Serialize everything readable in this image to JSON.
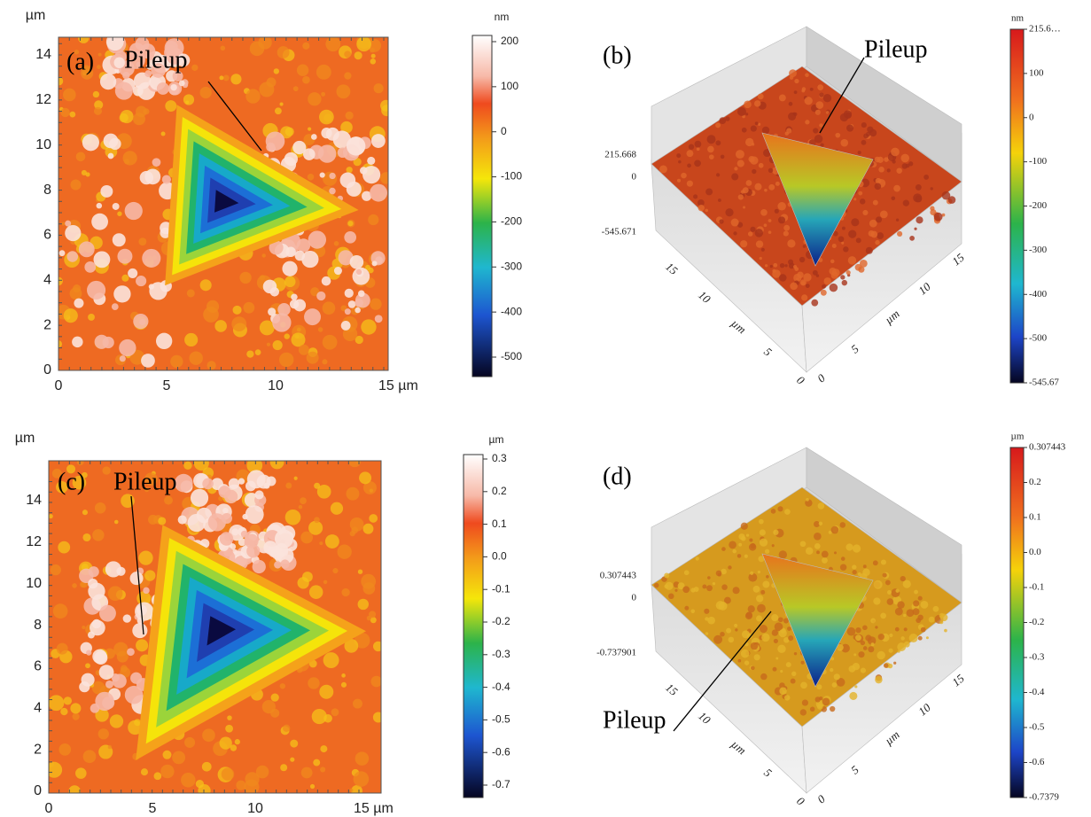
{
  "panels": [
    {
      "label": "(a)",
      "annotation": "Pileup",
      "axis_unit": "µm",
      "xticks": [
        "0",
        "5",
        "10",
        "15 µm"
      ],
      "yticks": [
        "0",
        "2",
        "4",
        "6",
        "8",
        "10",
        "12",
        "14"
      ],
      "colorbar_unit": "nm",
      "colorbar_ticks": [
        "200",
        "100",
        "0",
        "-100",
        "-200",
        "-300",
        "-400",
        "-500"
      ]
    },
    {
      "label": "(b)",
      "annotation": "Pileup",
      "z_labels": [
        "215.668",
        "0",
        "-545.671"
      ],
      "left_axis_labels": [
        "15",
        "10",
        "µm",
        "5",
        "0"
      ],
      "right_axis_labels": [
        "0",
        "5",
        "µm",
        "10",
        "15"
      ],
      "colorbar_unit": "nm",
      "colorbar_ticks": [
        "215.6…",
        "100",
        "0",
        "-100",
        "-200",
        "-300",
        "-400",
        "-500",
        "-545.67"
      ]
    },
    {
      "label": "(c)",
      "annotation": "Pileup",
      "axis_unit": "µm",
      "xticks": [
        "0",
        "5",
        "10",
        "15 µm"
      ],
      "yticks": [
        "0",
        "2",
        "4",
        "6",
        "8",
        "10",
        "12",
        "14"
      ],
      "colorbar_unit": "µm",
      "colorbar_ticks": [
        "0.3",
        "0.2",
        "0.1",
        "0.0",
        "-0.1",
        "-0.2",
        "-0.3",
        "-0.4",
        "-0.5",
        "-0.6",
        "-0.7"
      ]
    },
    {
      "label": "(d)",
      "annotation": "Pileup",
      "z_labels": [
        "0.307443",
        "0",
        "-0.737901"
      ],
      "left_axis_labels": [
        "15",
        "10",
        "µm",
        "5",
        "0"
      ],
      "right_axis_labels": [
        "0",
        "5",
        "µm",
        "10",
        "15"
      ],
      "colorbar_unit": "µm",
      "colorbar_ticks": [
        "0.307443",
        "0.2",
        "0.1",
        "0.0",
        "-0.1",
        "-0.2",
        "-0.3",
        "-0.4",
        "-0.5",
        "-0.6",
        "-0.7379"
      ]
    }
  ]
}
